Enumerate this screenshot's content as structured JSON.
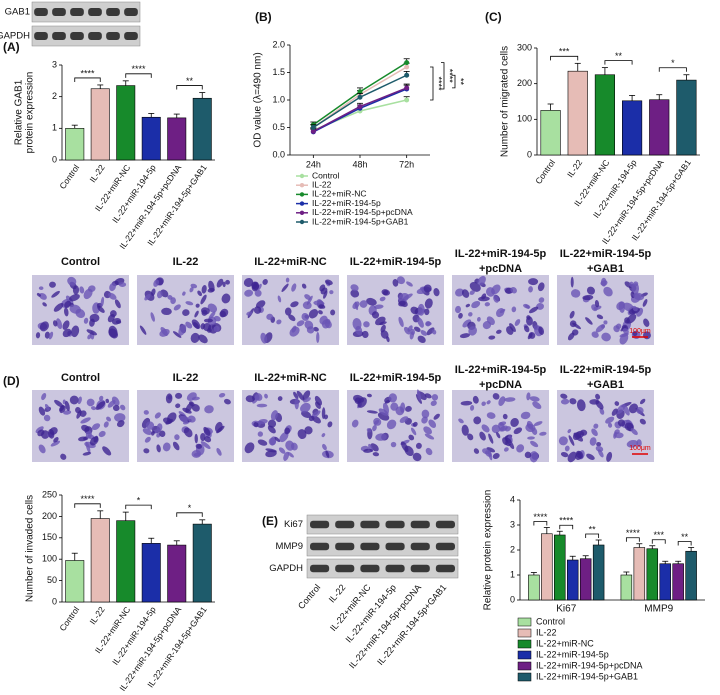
{
  "chart_data": [
    {
      "type": "bar",
      "panel_label": "(A)",
      "ylabel": [
        "Relative GAB1",
        "protein expression"
      ],
      "categories": [
        "Control",
        "IL-22",
        "IL-22+miR-NC",
        "IL-22+miR-194-5p",
        "IL-22+miR-194-5p+pcDNA",
        "IL-22+miR-194-5p+GAB1"
      ],
      "values": [
        1.0,
        2.25,
        2.35,
        1.35,
        1.33,
        1.95
      ],
      "errors": [
        0.1,
        0.12,
        0.15,
        0.12,
        0.12,
        0.18
      ],
      "colors": [
        "#a8e0a0",
        "#e6bcb6",
        "#178a2b",
        "#1b2ea8",
        "#6e1f84",
        "#1e5b6b"
      ],
      "ylim": [
        0,
        3
      ],
      "yticks": [
        0,
        1,
        2,
        3
      ],
      "significance": [
        "****",
        "****",
        "**"
      ]
    },
    {
      "type": "line",
      "panel_label": "(B)",
      "ylabel": "OD value (λ=490 nm)",
      "categories": [
        "24h",
        "48h",
        "72h"
      ],
      "series": [
        {
          "name": "Control",
          "color": "#a8e0a0",
          "values": [
            0.45,
            0.8,
            1.0
          ],
          "errors": [
            0.05,
            0.07,
            0.06
          ]
        },
        {
          "name": "IL-22",
          "color": "#e6bcb6",
          "values": [
            0.5,
            1.1,
            1.6
          ],
          "errors": [
            0.05,
            0.07,
            0.07
          ]
        },
        {
          "name": "IL-22+miR-NC",
          "color": "#178a2b",
          "values": [
            0.55,
            1.15,
            1.68
          ],
          "errors": [
            0.05,
            0.07,
            0.07
          ]
        },
        {
          "name": "IL-22+miR-194-5p",
          "color": "#1b2ea8",
          "values": [
            0.42,
            0.85,
            1.2
          ],
          "errors": [
            0.05,
            0.06,
            0.07
          ]
        },
        {
          "name": "IL-22+miR-194-5p+pcDNA",
          "color": "#6e1f84",
          "values": [
            0.43,
            0.88,
            1.22
          ],
          "errors": [
            0.05,
            0.06,
            0.07
          ]
        },
        {
          "name": "IL-22+miR-194-5p+GAB1",
          "color": "#1e5b6b",
          "values": [
            0.5,
            1.05,
            1.45
          ],
          "errors": [
            0.05,
            0.07,
            0.07
          ]
        }
      ],
      "ylim": [
        0,
        2
      ],
      "yticks": [
        {
          "value": 0,
          "label": "0.0"
        },
        0.5,
        {
          "value": 1,
          "label": "1.0"
        },
        1.5,
        {
          "value": 2,
          "label": "2.0"
        }
      ],
      "significance": [
        "****",
        "****",
        "**"
      ]
    },
    {
      "type": "bar",
      "panel_label": "(C)",
      "ylabel": "Number of migrated cells",
      "categories": [
        "Control",
        "IL-22",
        "IL-22+miR-NC",
        "IL-22+miR-194-5p",
        "IL-22+miR-194-5p+pcDNA",
        "IL-22+miR-194-5p+GAB1"
      ],
      "values": [
        125,
        235,
        225,
        152,
        155,
        210
      ],
      "errors": [
        18,
        22,
        20,
        15,
        14,
        15
      ],
      "colors": [
        "#a8e0a0",
        "#e6bcb6",
        "#178a2b",
        "#1b2ea8",
        "#6e1f84",
        "#1e5b6b"
      ],
      "ylim": [
        0,
        300
      ],
      "yticks": [
        0,
        100,
        200,
        300
      ],
      "significance": [
        "***",
        "**",
        "*"
      ]
    },
    {
      "type": "bar",
      "panel_label": "(D)",
      "ylabel": "Number of invaded cells",
      "categories": [
        "Control",
        "IL-22",
        "IL-22+miR-NC",
        "IL-22+miR-194-5p",
        "IL-22+miR-194-5p+pcDNA",
        "IL-22+miR-194-5p+GAB1"
      ],
      "values": [
        97,
        195,
        190,
        137,
        133,
        182
      ],
      "errors": [
        17,
        18,
        20,
        12,
        10,
        10
      ],
      "colors": [
        "#a8e0a0",
        "#e6bcb6",
        "#178a2b",
        "#1b2ea8",
        "#6e1f84",
        "#1e5b6b"
      ],
      "ylim": [
        0,
        250
      ],
      "yticks": [
        0,
        50,
        100,
        150,
        200,
        250
      ],
      "significance": [
        "****",
        "*",
        "*"
      ]
    },
    {
      "type": "grouped_bar",
      "panel_label": "(E)",
      "ylabel": "Relative protein expression",
      "categories": [
        "Ki67",
        "MMP9"
      ],
      "series": [
        {
          "name": "Control",
          "color": "#a8e0a0",
          "values": [
            1.0,
            1.0
          ],
          "errors": [
            0.1,
            0.12
          ]
        },
        {
          "name": "IL-22",
          "color": "#e6bcb6",
          "values": [
            2.65,
            2.1
          ],
          "errors": [
            0.25,
            0.15
          ]
        },
        {
          "name": "IL-22+miR-NC",
          "color": "#178a2b",
          "values": [
            2.6,
            2.05
          ],
          "errors": [
            0.15,
            0.12
          ]
        },
        {
          "name": "IL-22+miR-194-5p",
          "color": "#1b2ea8",
          "values": [
            1.6,
            1.45
          ],
          "errors": [
            0.15,
            0.1
          ]
        },
        {
          "name": "IL-22+miR-194-5p+pcDNA",
          "color": "#6e1f84",
          "values": [
            1.65,
            1.45
          ],
          "errors": [
            0.12,
            0.1
          ]
        },
        {
          "name": "IL-22+miR-194-5p+GAB1",
          "color": "#1e5b6b",
          "values": [
            2.2,
            1.95
          ],
          "errors": [
            0.2,
            0.15
          ]
        }
      ],
      "ylim": [
        0,
        4
      ],
      "yticks": [
        0,
        1,
        2,
        3,
        4
      ],
      "significance": [
        [
          "****",
          "****",
          "**"
        ],
        [
          "****",
          "***",
          "**"
        ]
      ]
    }
  ],
  "blot_A": {
    "rows": [
      "GAB1",
      "GAPDH"
    ]
  },
  "blot_E": {
    "rows": [
      "Ki67",
      "MMP9",
      "GAPDH"
    ],
    "lanes": [
      "Control",
      "IL-22",
      "IL-22+miR-NC",
      "IL-22+miR-194-5p",
      "IL-22+miR-194-5p+pcDNA",
      "IL-22+miR-194-5p+GAB1"
    ]
  },
  "micrographs": {
    "columns": [
      [
        "Control"
      ],
      [
        "IL-22"
      ],
      [
        "IL-22+miR-NC"
      ],
      [
        "IL-22+miR-194-5p"
      ],
      [
        "IL-22+miR-194-5p",
        "+pcDNA"
      ],
      [
        "IL-22+miR-194-5p",
        "+GAB1"
      ]
    ],
    "scale_bar": "100μm"
  }
}
